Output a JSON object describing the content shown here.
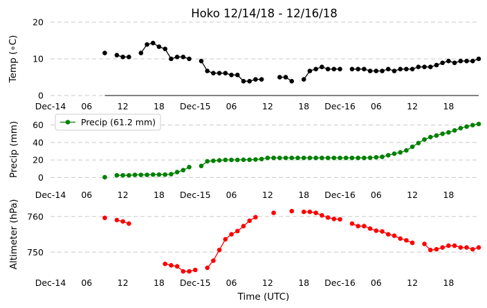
{
  "chart_data": {
    "type": "line",
    "title": "Hoko 12/14/18 - 12/16/18",
    "xlabel": "Time (UTC)",
    "xlim_hours": [
      0,
      71
    ],
    "x_ticks": [
      {
        "h": 0,
        "label": "Dec-14"
      },
      {
        "h": 6,
        "label": "06"
      },
      {
        "h": 12,
        "label": "12"
      },
      {
        "h": 18,
        "label": "18"
      },
      {
        "h": 24,
        "label": "Dec-15"
      },
      {
        "h": 30,
        "label": "06"
      },
      {
        "h": 36,
        "label": "12"
      },
      {
        "h": 42,
        "label": "18"
      },
      {
        "h": 48,
        "label": "Dec-16"
      },
      {
        "h": 54,
        "label": "06"
      },
      {
        "h": 60,
        "label": "12"
      },
      {
        "h": 66,
        "label": "18"
      }
    ],
    "panels": [
      {
        "name": "temperature",
        "ylabel": "Temp (∘C)",
        "color": "#000000",
        "ylim": [
          0,
          20
        ],
        "yticks": [
          0,
          10,
          20
        ],
        "series": {
          "name": "Temp",
          "x": [
            9,
            11,
            12,
            13,
            15,
            16,
            17,
            18,
            19,
            20,
            21,
            22,
            23,
            25,
            26,
            27,
            28,
            29,
            30,
            31,
            32,
            33,
            34,
            35,
            36,
            38,
            39,
            40,
            42,
            43,
            44,
            45,
            46,
            47,
            48,
            49,
            50,
            51,
            52,
            53,
            54,
            55,
            56,
            57,
            58,
            59,
            60,
            61,
            62,
            63,
            64,
            65,
            66,
            67,
            68,
            69,
            70,
            71
          ],
          "y": [
            11.6,
            11.0,
            10.5,
            10.5,
            11.6,
            13.9,
            14.3,
            13.3,
            12.7,
            10.0,
            10.5,
            10.5,
            10.0,
            9.4,
            6.7,
            6.1,
            6.1,
            6.1,
            5.6,
            5.6,
            3.9,
            3.9,
            4.4,
            4.4,
            null,
            5.0,
            5.0,
            3.9,
            4.4,
            6.7,
            7.2,
            7.8,
            7.2,
            7.2,
            7.2,
            null,
            7.2,
            7.2,
            7.2,
            6.7,
            6.7,
            6.7,
            7.2,
            6.7,
            7.2,
            7.2,
            7.2,
            7.8,
            7.8,
            7.8,
            8.3,
            8.9,
            9.4,
            8.9,
            9.4,
            9.4,
            9.4,
            10.0
          ]
        }
      },
      {
        "name": "precipitation",
        "ylabel": "Precip (mm)",
        "color": "#008000",
        "ylim": [
          -6,
          70
        ],
        "yticks": [
          0,
          20,
          40,
          60
        ],
        "legend": "Precip (61.2 mm)",
        "legend_position": "upper-left",
        "series": {
          "name": "Precip (61.2 mm)",
          "x": [
            9,
            11,
            12,
            13,
            14,
            15,
            16,
            17,
            18,
            19,
            20,
            21,
            22,
            23,
            25,
            26,
            27,
            28,
            29,
            30,
            31,
            32,
            33,
            34,
            35,
            36,
            37,
            38,
            39,
            40,
            41,
            42,
            43,
            44,
            45,
            46,
            47,
            48,
            49,
            50,
            51,
            52,
            53,
            54,
            55,
            56,
            57,
            58,
            59,
            60,
            61,
            62,
            63,
            64,
            65,
            66,
            67,
            68,
            69,
            70,
            71
          ],
          "y": [
            0.3,
            2.5,
            2.5,
            2.5,
            3.0,
            3.0,
            3.0,
            3.3,
            3.3,
            3.3,
            3.8,
            6.1,
            8.4,
            11.9,
            13.2,
            18.5,
            19.1,
            19.6,
            20.1,
            20.1,
            20.1,
            20.3,
            20.3,
            20.6,
            21.1,
            22.4,
            22.4,
            22.4,
            22.4,
            22.4,
            22.4,
            22.4,
            22.4,
            22.4,
            22.4,
            22.4,
            22.4,
            22.4,
            22.4,
            22.4,
            22.4,
            22.4,
            22.6,
            23.1,
            23.6,
            25.4,
            27.2,
            28.7,
            31.0,
            35.1,
            39.4,
            43.4,
            46.2,
            48.0,
            50.0,
            51.6,
            53.8,
            56.4,
            58.2,
            59.9,
            61.2
          ]
        }
      },
      {
        "name": "altimeter",
        "ylabel": "Altimeter (hPa)",
        "color": "#ff0000",
        "ylim": [
          745,
          765
        ],
        "yticks": [
          750,
          760
        ],
        "series": {
          "name": "Altimeter",
          "x": [
            9,
            11,
            12,
            13,
            19,
            20,
            21,
            22,
            23,
            24,
            26,
            27,
            28,
            29,
            30,
            31,
            32,
            33,
            34,
            37,
            40,
            42,
            43,
            44,
            45,
            46,
            47,
            48,
            50,
            51,
            52,
            53,
            54,
            55,
            56,
            57,
            58,
            59,
            60,
            62,
            63,
            64,
            65,
            66,
            67,
            68,
            69,
            70,
            71
          ],
          "y": [
            759.6,
            759.0,
            758.6,
            758.0,
            746.7,
            746.3,
            746.0,
            744.6,
            744.6,
            745.0,
            745.6,
            747.6,
            750.6,
            753.6,
            755.0,
            755.9,
            757.3,
            758.8,
            759.8,
            761.0,
            761.5,
            761.3,
            761.3,
            761.0,
            760.3,
            759.7,
            759.3,
            759.2,
            758.0,
            757.3,
            757.3,
            756.6,
            756.0,
            755.8,
            755.0,
            754.6,
            753.8,
            753.3,
            752.6,
            752.3,
            750.6,
            750.8,
            751.3,
            751.8,
            751.8,
            751.3,
            751.3,
            750.8,
            751.3
          ]
        }
      }
    ]
  }
}
